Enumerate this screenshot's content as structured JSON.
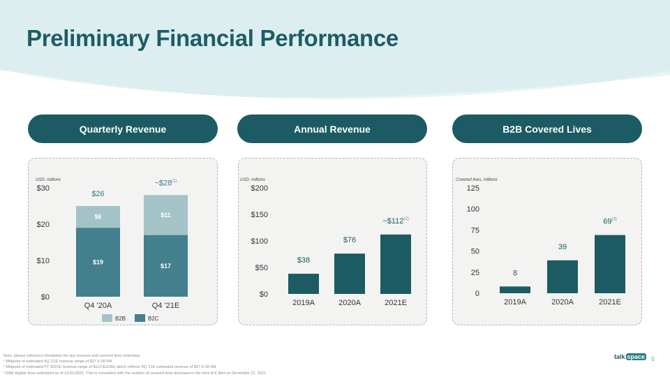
{
  "title": "Preliminary Financial Performance",
  "colors": {
    "teal_dark": "#1c5b63",
    "teal_mid": "#437f8c",
    "teal_light": "#a3c3c7",
    "title": "#1d5d65"
  },
  "pills": {
    "quarterly": "Quarterly Revenue",
    "annual": "Annual Revenue",
    "b2b": "B2B Covered Lives"
  },
  "quarterly": {
    "units": "USD, millions",
    "legend": {
      "b2b": "B2B",
      "b2c": "B2C"
    },
    "totals": [
      {
        "label": "$26",
        "sup": ""
      },
      {
        "label": "~$28",
        "sup": "(1)"
      }
    ]
  },
  "annual": {
    "units": "USD, millions",
    "data_labels": [
      {
        "label": "$38",
        "sup": ""
      },
      {
        "label": "$76",
        "sup": ""
      },
      {
        "label": "~$112",
        "sup": "(2)"
      }
    ]
  },
  "lives": {
    "units": "Covered lives, millions",
    "data_labels": [
      {
        "label": "8",
        "sup": ""
      },
      {
        "label": "39",
        "sup": ""
      },
      {
        "label": "69",
        "sup": "(3)"
      }
    ]
  },
  "chart_data": [
    {
      "type": "bar",
      "stacked": true,
      "title": "Quarterly Revenue",
      "ylabel": "USD, millions",
      "categories": [
        "Q4 '20A",
        "Q4 '21E"
      ],
      "series": [
        {
          "name": "B2C",
          "values": [
            19,
            17
          ],
          "labels": [
            "$19",
            "$17"
          ]
        },
        {
          "name": "B2B",
          "values": [
            6,
            11
          ],
          "labels": [
            "$6",
            "$11"
          ]
        }
      ],
      "yticks": [
        "$0",
        "$10",
        "$20",
        "$30"
      ],
      "ylim": [
        0,
        30
      ],
      "legend": "bottom"
    },
    {
      "type": "bar",
      "title": "Annual Revenue",
      "ylabel": "USD, millions",
      "categories": [
        "2019A",
        "2020A",
        "2021E"
      ],
      "values": [
        38,
        76,
        112
      ],
      "yticks": [
        "$0",
        "$50",
        "$100",
        "$150",
        "$200"
      ],
      "ylim": [
        0,
        200
      ]
    },
    {
      "type": "bar",
      "title": "B2B Covered Lives",
      "ylabel": "Covered lives, millions",
      "categories": [
        "2019A",
        "2020A",
        "2021E"
      ],
      "values": [
        8,
        39,
        69
      ],
      "yticks": [
        "0",
        "25",
        "50",
        "75",
        "100",
        "125"
      ],
      "ylim": [
        0,
        125
      ]
    }
  ],
  "notes": [
    "Note: please reference Disclaimer for any revenue and covered lives estimates",
    "¹ Midpoint of estimated 4Q '21E revenue range of $27.5-28.5M.",
    "² Midpoint of estimated FY 2021E revenue range of $112-$113M, which reflects 4Q' 21E estimated revenue of $27.5-28.5M.",
    "³ 69M eligible lives estimated as of 12/31/2021. This is consistent with the number of covered lives disclosed in the form 8-K filed on December 21, 2021."
  ],
  "logo": {
    "part1": "talk",
    "part2": "space"
  },
  "page_number": "6"
}
